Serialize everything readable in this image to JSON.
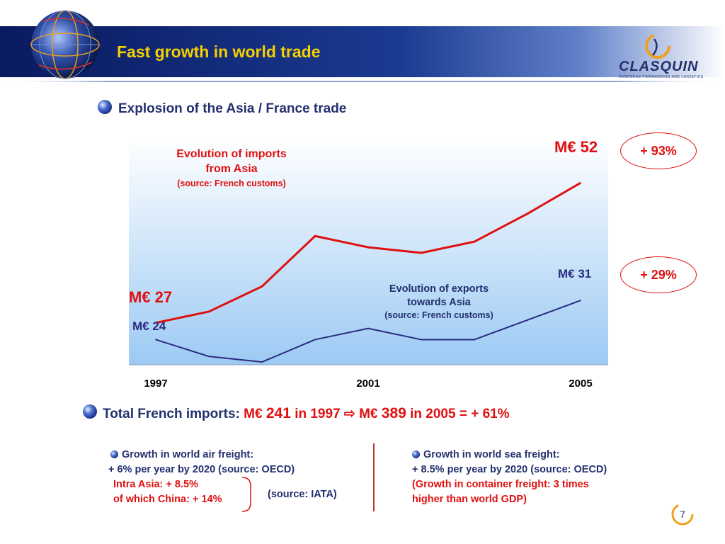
{
  "header": {
    "title": "Fast growth in world trade",
    "logo_text": "CLASQUIN",
    "logo_tagline": "OVERSEAS FORWARDING AND LOGISTICS"
  },
  "subtitle": "Explosion of the Asia / France trade",
  "imports_block": {
    "title_line1": "Evolution of imports",
    "title_line2": "from Asia",
    "source": "(source: French customs)",
    "start_label": "M€ 27",
    "end_label": "M€ 52",
    "growth": "+ 93%"
  },
  "exports_block": {
    "title_line1": "Evolution of exports",
    "title_line2": "towards Asia",
    "source": "(source: French customs)",
    "start_label": "M€ 24",
    "end_label": "M€ 31",
    "growth": "+ 29%"
  },
  "chart_data": {
    "type": "line",
    "x": [
      1997,
      1998,
      1999,
      2000,
      2001,
      2002,
      2003,
      2004,
      2005
    ],
    "x_tick_labels": [
      "1997",
      "2001",
      "2005"
    ],
    "series": [
      {
        "name": "Evolution of imports from Asia",
        "values": [
          27,
          29,
          33.5,
          42.5,
          40.5,
          39.5,
          41.5,
          46.5,
          52
        ]
      },
      {
        "name": "Evolution of exports towards Asia",
        "values": [
          24,
          21,
          20,
          24,
          26,
          24,
          24,
          27.5,
          31
        ]
      }
    ],
    "ylim": [
      19.5,
      60
    ],
    "colors": {
      "imports": "#e01010",
      "exports": "#2a2a80"
    },
    "grid": false
  },
  "total": {
    "prefix": "Total French imports:",
    "value1_unit": "M€",
    "value1": "241",
    "in1": "in 1997",
    "arrow": "⇨",
    "value2_unit": "M€",
    "value2": "389",
    "in2": "in 2005 = + 61%"
  },
  "air_freight": {
    "heading": "Growth in world air freight:",
    "line1": "+ 6% per year by 2020 (source: OECD)",
    "line2": "Intra Asia: + 8.5%",
    "line3": "of which China: + 14%",
    "source": "(source: IATA)"
  },
  "sea_freight": {
    "heading": "Growth in world sea freight:",
    "line1": "+ 8.5% per year by 2020 (source: OECD)",
    "line2": "(Growth in container freight: 3 times",
    "line3": "higher than world GDP)"
  },
  "page_number": "7"
}
